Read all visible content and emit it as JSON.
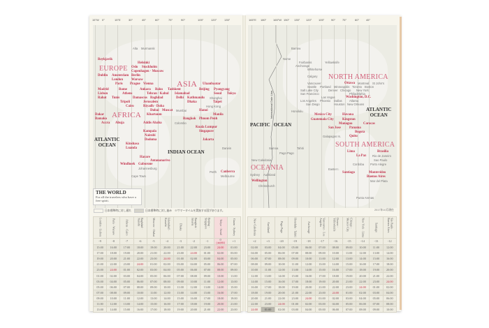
{
  "left_page": {
    "longitudes": [
      "15°W",
      "0°",
      "15°E",
      "30°",
      "45°",
      "60°",
      "75°",
      "90°",
      "105°",
      "120°",
      "135°"
    ],
    "regions": [
      "EUROPE",
      "ASIA",
      "AFRICA"
    ],
    "oceans": {
      "atlantic": "ATLANTIC\nOCEAN",
      "indian": "INDIAN OCEAN"
    },
    "cities": [
      {
        "name": "Alta",
        "hl": false
      },
      {
        "name": "Murmansk",
        "hl": false
      },
      {
        "name": "Reykjavik",
        "hl": true
      },
      {
        "name": "Helsinki",
        "hl": true
      },
      {
        "name": "Oslo",
        "hl": true
      },
      {
        "name": "Stockholm",
        "hl": true
      },
      {
        "name": "Copenhagen · Moscow",
        "hl": true
      },
      {
        "name": "Dublin",
        "hl": true
      },
      {
        "name": "Amsterdam",
        "hl": true
      },
      {
        "name": "Berlin",
        "hl": true
      },
      {
        "name": "London",
        "hl": true
      },
      {
        "name": "Warsaw",
        "hl": true
      },
      {
        "name": "Paris",
        "hl": true
      },
      {
        "name": "Prague",
        "hl": true
      },
      {
        "name": "Vienna",
        "hl": true
      },
      {
        "name": "Madrid",
        "hl": true
      },
      {
        "name": "Rome",
        "hl": true
      },
      {
        "name": "Ankara",
        "hl": true
      },
      {
        "name": "Baku",
        "hl": true
      },
      {
        "name": "Tashkent",
        "hl": true
      },
      {
        "name": "Ulaanbaatar",
        "hl": true
      },
      {
        "name": "Beijing",
        "hl": true
      },
      {
        "name": "Pyongyang",
        "hl": true
      },
      {
        "name": "Seoul",
        "hl": true
      },
      {
        "name": "Tokyo",
        "hl": true
      },
      {
        "name": "Lisbon",
        "hl": true
      },
      {
        "name": "Athens",
        "hl": true
      },
      {
        "name": "Tehran · Kabul",
        "hl": true
      },
      {
        "name": "Rabat",
        "hl": true
      },
      {
        "name": "Tunis",
        "hl": true
      },
      {
        "name": "Damascus",
        "hl": true
      },
      {
        "name": "Islamabad",
        "hl": true
      },
      {
        "name": "Tripoli",
        "hl": true
      },
      {
        "name": "Baghdad",
        "hl": true
      },
      {
        "name": "Delhi",
        "hl": true
      },
      {
        "name": "Kathmandu",
        "hl": true
      },
      {
        "name": "Cairo",
        "hl": true
      },
      {
        "name": "Jerusalem",
        "hl": true
      },
      {
        "name": "Riyadh · Doha",
        "hl": true
      },
      {
        "name": "Dhaka",
        "hl": true
      },
      {
        "name": "Taipei",
        "hl": true
      },
      {
        "name": "Dubai",
        "hl": true
      },
      {
        "name": "Muscat",
        "hl": true
      },
      {
        "name": "Hanoi",
        "hl": true
      },
      {
        "name": "Dakar",
        "hl": true
      },
      {
        "name": "Khartoum",
        "hl": true
      },
      {
        "name": "Manila",
        "hl": true
      },
      {
        "name": "Bamako",
        "hl": true
      },
      {
        "name": "Bangkok",
        "hl": true
      },
      {
        "name": "Phnom Penh",
        "hl": true
      },
      {
        "name": "Accra",
        "hl": true
      },
      {
        "name": "Abuja",
        "hl": true
      },
      {
        "name": "Addis Ababa",
        "hl": true
      },
      {
        "name": "Kuala Lumpur",
        "hl": true
      },
      {
        "name": "Singapore",
        "hl": true
      },
      {
        "name": "Kampala",
        "hl": true
      },
      {
        "name": "Nairobi",
        "hl": true
      },
      {
        "name": "Dodoma",
        "hl": true
      },
      {
        "name": "Kinshasa",
        "hl": true
      },
      {
        "name": "Luanda",
        "hl": true
      },
      {
        "name": "Jakarta",
        "hl": true
      },
      {
        "name": "Harare",
        "hl": true
      },
      {
        "name": "Antananarivo",
        "hl": true
      },
      {
        "name": "Windhoek",
        "hl": true
      },
      {
        "name": "Gaborone",
        "hl": true
      },
      {
        "name": "Johannesburg",
        "hl": false
      },
      {
        "name": "Cape Town",
        "hl": false
      },
      {
        "name": "Canberra",
        "hl": true
      },
      {
        "name": "Melbourne",
        "hl": false
      },
      {
        "name": "Darwin",
        "hl": false
      },
      {
        "name": "Perth",
        "hl": false
      },
      {
        "name": "Hong Kong",
        "hl": false
      },
      {
        "name": "Shanghai",
        "hl": false
      },
      {
        "name": "Mumbai",
        "hl": false
      },
      {
        "name": "Colombo",
        "hl": false
      }
    ],
    "title": "THE WORLD",
    "subtitle": "For all the travelers who have a free spirit.",
    "legend": {
      "behind": "日本標準時に対し遅れ",
      "ahead": "日本標準時に対し進み",
      "note": "※サマータイムを実施する国があります。"
    }
  },
  "right_page": {
    "longitudes": [
      "165°E",
      "180°",
      "165°W",
      "150°",
      "135°",
      "120°",
      "105°",
      "90°",
      "75°",
      "60°",
      "45°"
    ],
    "regions": [
      "NORTH AMERICA",
      "SOUTH AMERICA",
      "OCEANIA"
    ],
    "oceans": {
      "pacific": "PACIFIC   OCEAN",
      "atlantic": "ATLANTIC\nOCEAN"
    },
    "date_line": "International Date Line",
    "cities": [
      {
        "name": "Barrow",
        "hl": false
      },
      {
        "name": "Nome",
        "hl": false
      },
      {
        "name": "Fairbanks",
        "hl": false
      },
      {
        "name": "Anchorage",
        "hl": false
      },
      {
        "name": "Yellowknife",
        "hl": false
      },
      {
        "name": "Whitehorse",
        "hl": false
      },
      {
        "name": "Calgary",
        "hl": false
      },
      {
        "name": "Vancouver",
        "hl": false
      },
      {
        "name": "Seattle",
        "hl": false
      },
      {
        "name": "Ottawa",
        "hl": true
      },
      {
        "name": "Montreal",
        "hl": false
      },
      {
        "name": "St John's",
        "hl": false
      },
      {
        "name": "Portland",
        "hl": false
      },
      {
        "name": "Salt Lake City",
        "hl": false
      },
      {
        "name": "Minneapolis",
        "hl": false
      },
      {
        "name": "Toronto",
        "hl": false
      },
      {
        "name": "Boston",
        "hl": false
      },
      {
        "name": "New York",
        "hl": false
      },
      {
        "name": "San Francisco",
        "hl": false
      },
      {
        "name": "Denver",
        "hl": false
      },
      {
        "name": "Chicago",
        "hl": false
      },
      {
        "name": "Philadelphia",
        "hl": false
      },
      {
        "name": "Washington, D.C.",
        "hl": true
      },
      {
        "name": "Los Angeles",
        "hl": false
      },
      {
        "name": "Las Vegas",
        "hl": false
      },
      {
        "name": "Atlanta",
        "hl": false
      },
      {
        "name": "San Diego",
        "hl": false
      },
      {
        "name": "Phoenix",
        "hl": false
      },
      {
        "name": "Dallas",
        "hl": false
      },
      {
        "name": "Houston",
        "hl": false
      },
      {
        "name": "New Orleans",
        "hl": false
      },
      {
        "name": "Honolulu",
        "hl": false
      },
      {
        "name": "Mexico City",
        "hl": true
      },
      {
        "name": "Havana",
        "hl": true
      },
      {
        "name": "Guatemala City",
        "hl": true
      },
      {
        "name": "Kingston",
        "hl": true
      },
      {
        "name": "Managua",
        "hl": true
      },
      {
        "name": "San Jose",
        "hl": true
      },
      {
        "name": "Caracas",
        "hl": true
      },
      {
        "name": "Panama",
        "hl": true
      },
      {
        "name": "Bogota",
        "hl": true
      },
      {
        "name": "Galapagos Is.",
        "hl": false
      },
      {
        "name": "Quito",
        "hl": true
      },
      {
        "name": "Samoa",
        "hl": false
      },
      {
        "name": "Pago Pago",
        "hl": false
      },
      {
        "name": "Tahiti",
        "hl": false
      },
      {
        "name": "Lima",
        "hl": true
      },
      {
        "name": "Brasilia",
        "hl": true
      },
      {
        "name": "La Paz",
        "hl": true
      },
      {
        "name": "New Caledonia",
        "hl": false
      },
      {
        "name": "Sydney",
        "hl": false
      },
      {
        "name": "Auckland",
        "hl": false
      },
      {
        "name": "Easter I.",
        "hl": false
      },
      {
        "name": "Rio de Janeiro",
        "hl": false
      },
      {
        "name": "Sao Paulo",
        "hl": false
      },
      {
        "name": "Santiago",
        "hl": true
      },
      {
        "name": "Montevideo",
        "hl": true
      },
      {
        "name": "Buenos Aires",
        "hl": true
      },
      {
        "name": "Wellington",
        "hl": true
      },
      {
        "name": "Christchurch",
        "hl": false
      },
      {
        "name": "Punta Arenas",
        "hl": false
      },
      {
        "name": "Mar del Plata",
        "hl": false
      },
      {
        "name": "Cordoba",
        "hl": false
      },
      {
        "name": "Porto Alegre",
        "hl": false
      }
    ],
    "as_of": "2017年10月現在"
  },
  "time_tables": [
    {
      "columns": [
        "London · Lisbon",
        "Paris · Warsaw",
        "Athens · Cairo",
        "Baghdad · Nairobi",
        "Moscow · Dubai",
        "Islamabad · Karachi",
        "Dhaka",
        "Bangkok · Jakarta",
        "Beijing · Singapore",
        "Tokyo · Seoul",
        "Guam · Sydney"
      ],
      "offsets": [
        "-9",
        "-8",
        "-7",
        "-6",
        "-5",
        "-4",
        "-3",
        "-2",
        "-1",
        "0",
        "+1"
      ],
      "home_column": 9,
      "home_label": "日本標準時",
      "rows": [
        [
          "15:00",
          "16:00",
          "17:00",
          "18:00",
          "19:00",
          "20:00",
          "21:00",
          "22:00",
          "23:00",
          "24:00",
          "01:00"
        ],
        [
          "17:00",
          "18:00",
          "19:00",
          "20:00",
          "21:00",
          "22:00",
          "23:00",
          "24:00",
          "01:00",
          "02:00",
          "03:00"
        ],
        [
          "19:00",
          "20:00",
          "21:00",
          "22:00",
          "23:00",
          "24:00",
          "01:00",
          "02:00",
          "03:00",
          "04:00",
          "05:00"
        ],
        [
          "21:00",
          "22:00",
          "23:00",
          "24:00",
          "01:00",
          "02:00",
          "03:00",
          "04:00",
          "05:00",
          "06:00",
          "07:00"
        ],
        [
          "23:00",
          "24:00",
          "01:00",
          "02:00",
          "03:00",
          "04:00",
          "05:00",
          "06:00",
          "07:00",
          "08:00",
          "09:00"
        ],
        [
          "01:00",
          "02:00",
          "03:00",
          "04:00",
          "05:00",
          "06:00",
          "07:00",
          "08:00",
          "09:00",
          "10:00",
          "11:00"
        ],
        [
          "03:00",
          "04:00",
          "05:00",
          "06:00",
          "07:00",
          "08:00",
          "09:00",
          "10:00",
          "11:00",
          "12:00",
          "13:00"
        ],
        [
          "05:00",
          "06:00",
          "07:00",
          "08:00",
          "09:00",
          "10:00",
          "11:00",
          "12:00",
          "13:00",
          "14:00",
          "15:00"
        ],
        [
          "07:00",
          "08:00",
          "09:00",
          "10:00",
          "11:00",
          "12:00",
          "13:00",
          "14:00",
          "15:00",
          "16:00",
          "17:00"
        ],
        [
          "09:00",
          "10:00",
          "11:00",
          "12:00",
          "13:00",
          "14:00",
          "15:00",
          "16:00",
          "17:00",
          "18:00",
          "19:00"
        ],
        [
          "11:00",
          "12:00",
          "13:00",
          "14:00",
          "15:00",
          "16:00",
          "17:00",
          "18:00",
          "19:00",
          "20:00",
          "21:00"
        ],
        [
          "13:00",
          "14:00",
          "15:00",
          "16:00",
          "17:00",
          "18:00",
          "19:00",
          "20:00",
          "21:00",
          "22:00",
          "23:00"
        ]
      ]
    },
    {
      "columns": [
        "New Caledonia",
        "Auckland",
        "Pago Pago",
        "Honolulu · Tahiti",
        "Anchorage",
        "Vancouver · Los Angeles",
        "Denver · Yellowknife",
        "Chicago · Mexico City",
        "New York · Lima",
        "Santiago",
        "São Paulo · Buenos Aires"
      ],
      "offsets": [
        "+2",
        "+3",
        "-20",
        "-19",
        "-18",
        "-17",
        "-16",
        "-15",
        "-14",
        "-13",
        "-12"
      ],
      "home_column": -1,
      "rows": [
        [
          "02:00",
          "03:00",
          "04:00",
          "05:00",
          "06:00",
          "07:00",
          "08:00",
          "09:00",
          "10:00",
          "11:00",
          "12:00"
        ],
        [
          "04:00",
          "05:00",
          "06:00",
          "07:00",
          "08:00",
          "09:00",
          "10:00",
          "11:00",
          "12:00",
          "13:00",
          "14:00"
        ],
        [
          "06:00",
          "07:00",
          "08:00",
          "09:00",
          "10:00",
          "11:00",
          "12:00",
          "13:00",
          "14:00",
          "15:00",
          "16:00"
        ],
        [
          "08:00",
          "09:00",
          "10:00",
          "11:00",
          "12:00",
          "13:00",
          "14:00",
          "15:00",
          "16:00",
          "17:00",
          "18:00"
        ],
        [
          "10:00",
          "11:00",
          "12:00",
          "13:00",
          "14:00",
          "15:00",
          "16:00",
          "17:00",
          "18:00",
          "19:00",
          "20:00"
        ],
        [
          "12:00",
          "13:00",
          "14:00",
          "15:00",
          "16:00",
          "17:00",
          "18:00",
          "19:00",
          "20:00",
          "21:00",
          "22:00"
        ],
        [
          "14:00",
          "15:00",
          "16:00",
          "17:00",
          "18:00",
          "19:00",
          "20:00",
          "21:00",
          "22:00",
          "23:00",
          "24:00"
        ],
        [
          "16:00",
          "17:00",
          "18:00",
          "19:00",
          "20:00",
          "21:00",
          "22:00",
          "23:00",
          "24:00",
          "01:00",
          "02:00"
        ],
        [
          "18:00",
          "19:00",
          "20:00",
          "21:00",
          "22:00",
          "23:00",
          "24:00",
          "01:00",
          "02:00",
          "03:00",
          "04:00"
        ],
        [
          "20:00",
          "21:00",
          "22:00",
          "23:00",
          "24:00",
          "01:00",
          "02:00",
          "03:00",
          "04:00",
          "05:00",
          "06:00"
        ],
        [
          "22:00",
          "23:00",
          "24:00",
          "01:00",
          "02:00",
          "03:00",
          "04:00",
          "05:00",
          "06:00",
          "07:00",
          "08:00"
        ],
        [
          "24:00",
          "01:00",
          "02:00",
          "03:00",
          "04:00",
          "05:00",
          "06:00",
          "07:00",
          "08:00",
          "09:00",
          "10:00"
        ]
      ],
      "highlight_cell": [
        11,
        1
      ]
    }
  ],
  "colors": {
    "accent_red": "#c2344e",
    "region_pink": "#d2607a",
    "home_column": "#f6dcdc",
    "paper": "#f7f5ec"
  }
}
